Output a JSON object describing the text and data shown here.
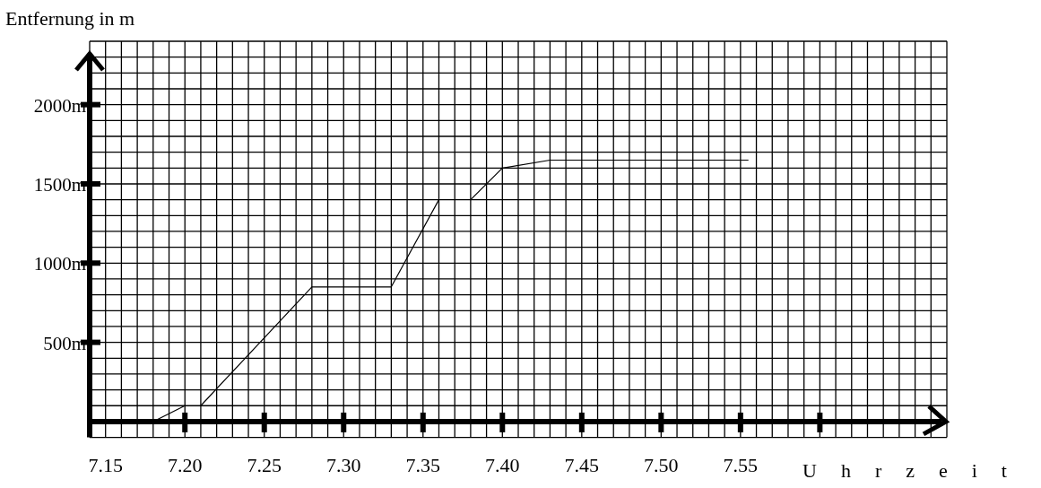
{
  "chart_data": {
    "type": "line",
    "xlabel": "Uhrzeit",
    "ylabel": "Entfernung in m",
    "series": [
      {
        "color": "#000000",
        "x": [
          7.18,
          7.2,
          7.205,
          7.21,
          7.28,
          7.33,
          7.36,
          7.37,
          7.38,
          7.4,
          7.43,
          7.555
        ],
        "values": [
          0,
          100,
          null,
          100,
          850,
          850,
          1400,
          null,
          1400,
          1600,
          1650,
          1650
        ]
      }
    ],
    "xlim": [
      7.14,
      7.68
    ],
    "ylim": [
      -100,
      2400
    ],
    "xticks": [
      {
        "value": 7.15,
        "label": "7.15"
      },
      {
        "value": 7.2,
        "label": "7.20"
      },
      {
        "value": 7.25,
        "label": "7.25"
      },
      {
        "value": 7.3,
        "label": "7.30"
      },
      {
        "value": 7.35,
        "label": "7.35"
      },
      {
        "value": 7.4,
        "label": "7.40"
      },
      {
        "value": 7.45,
        "label": "7.45"
      },
      {
        "value": 7.5,
        "label": "7.50"
      },
      {
        "value": 7.55,
        "label": "7.55"
      },
      {
        "value": 7.6,
        "label": null
      }
    ],
    "yticks": [
      {
        "value": 500,
        "label": "500m"
      },
      {
        "value": 1000,
        "label": "1000m"
      },
      {
        "value": 1500,
        "label": "1500m"
      },
      {
        "value": 2000,
        "label": "2000m"
      }
    ],
    "grid": true,
    "marker": "none",
    "line_style": "solid"
  }
}
